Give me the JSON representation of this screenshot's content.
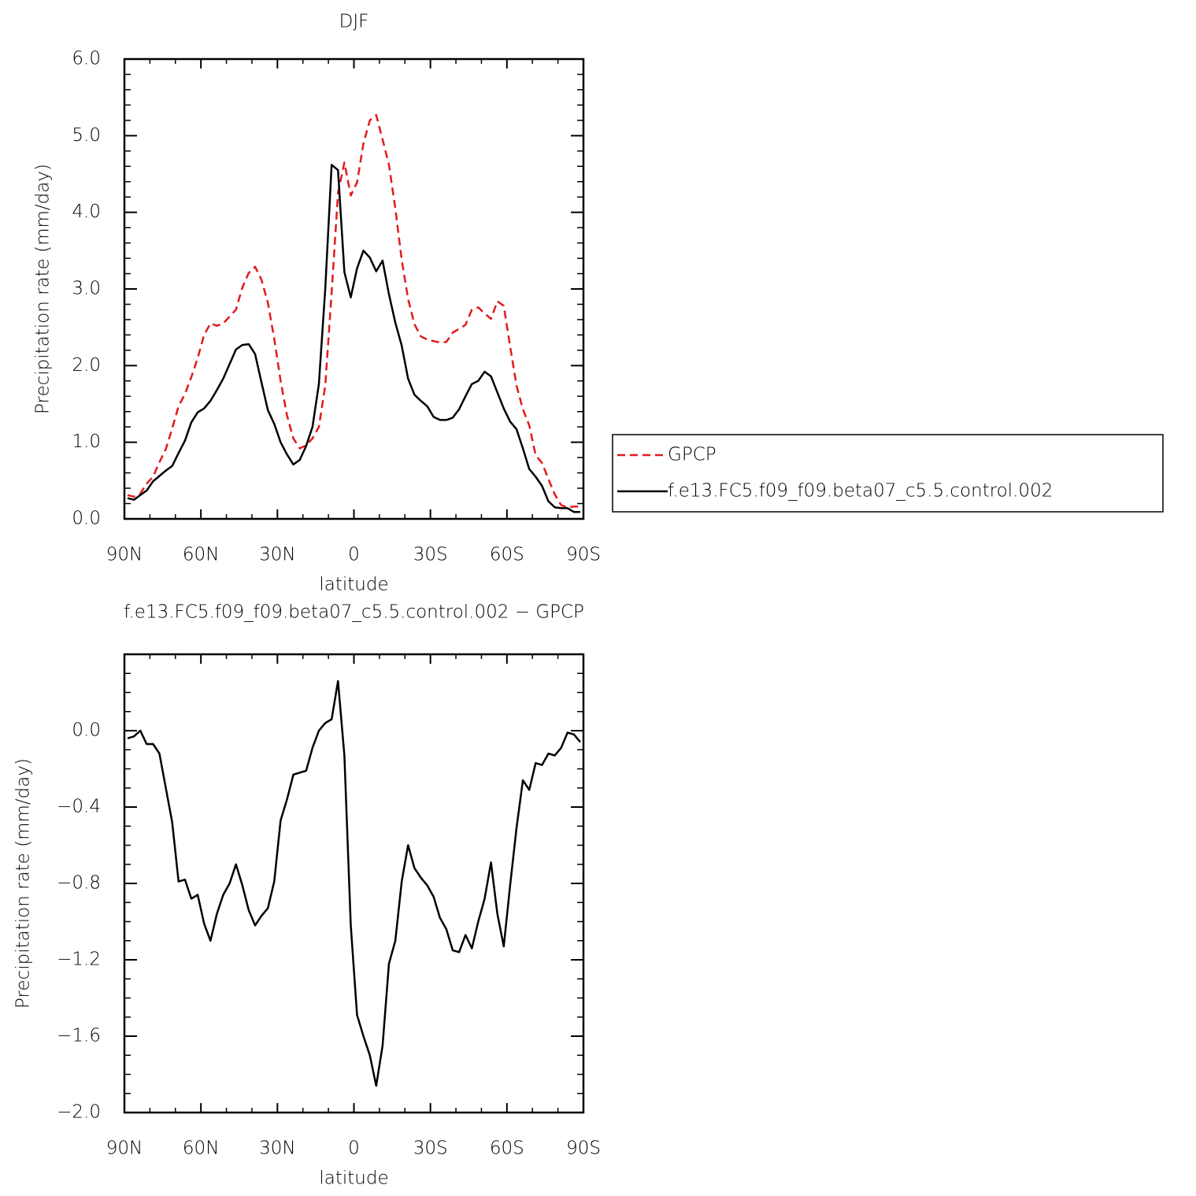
{
  "chart_data": [
    {
      "type": "line",
      "title": "DJF",
      "xlabel": "latitude",
      "ylabel": "Precipitation rate (mm/day)",
      "x": [
        88.75,
        86.25,
        83.75,
        81.25,
        78.75,
        76.25,
        73.75,
        71.25,
        68.75,
        66.25,
        63.75,
        61.25,
        58.75,
        56.25,
        53.75,
        51.25,
        48.75,
        46.25,
        43.75,
        41.25,
        38.75,
        36.25,
        33.75,
        31.25,
        28.75,
        26.25,
        23.75,
        21.25,
        18.75,
        16.25,
        13.75,
        11.25,
        8.75,
        6.25,
        3.75,
        1.25,
        -1.25,
        -3.75,
        -6.25,
        -8.75,
        -11.25,
        -13.75,
        -16.25,
        -18.75,
        -21.25,
        -23.75,
        -26.25,
        -28.75,
        -31.25,
        -33.75,
        -36.25,
        -38.75,
        -41.25,
        -43.75,
        -46.25,
        -48.75,
        -51.25,
        -53.75,
        -56.25,
        -58.75,
        -61.25,
        -63.75,
        -66.25,
        -68.75,
        -71.25,
        -73.75,
        -76.25,
        -78.75,
        -81.25,
        -83.75,
        -86.25,
        -88.75
      ],
      "series": [
        {
          "name": "GPCP",
          "color": "#e31a1c",
          "line_style": "dashed",
          "values": [
            0.31,
            0.29,
            0.33,
            0.46,
            0.55,
            0.74,
            0.91,
            1.18,
            1.47,
            1.63,
            1.85,
            2.1,
            2.4,
            2.55,
            2.52,
            2.55,
            2.64,
            2.73,
            3.02,
            3.21,
            3.29,
            3.12,
            2.82,
            2.35,
            1.8,
            1.35,
            1.05,
            0.92,
            0.96,
            1.05,
            1.2,
            1.74,
            2.95,
            4.25,
            4.65,
            4.22,
            4.39,
            4.9,
            5.2,
            5.27,
            4.95,
            4.62,
            4.05,
            3.38,
            2.87,
            2.54,
            2.38,
            2.34,
            2.32,
            2.3,
            2.31,
            2.43,
            2.48,
            2.53,
            2.73,
            2.76,
            2.68,
            2.61,
            2.84,
            2.78,
            2.25,
            1.74,
            1.43,
            1.22,
            0.83,
            0.73,
            0.52,
            0.32,
            0.18,
            0.15,
            0.16,
            0.16
          ]
        },
        {
          "name": "f.e13.FC5.f09_f09.beta07_c5.5.control.002",
          "color": "#000000",
          "line_style": "solid",
          "values": [
            0.27,
            0.25,
            0.31,
            0.37,
            0.49,
            0.56,
            0.63,
            0.69,
            0.86,
            1.02,
            1.26,
            1.39,
            1.44,
            1.54,
            1.68,
            1.83,
            2.02,
            2.21,
            2.27,
            2.28,
            2.15,
            1.78,
            1.42,
            1.24,
            1.0,
            0.84,
            0.71,
            0.77,
            0.95,
            1.2,
            1.76,
            3.0,
            4.62,
            4.55,
            3.22,
            2.89,
            3.27,
            3.5,
            3.41,
            3.23,
            3.37,
            2.93,
            2.56,
            2.26,
            1.83,
            1.62,
            1.54,
            1.47,
            1.33,
            1.29,
            1.29,
            1.32,
            1.43,
            1.6,
            1.76,
            1.8,
            1.92,
            1.86,
            1.65,
            1.44,
            1.27,
            1.17,
            0.92,
            0.65,
            0.55,
            0.43,
            0.23,
            0.15,
            0.14,
            0.14,
            0.09,
            0.09
          ]
        }
      ],
      "xlim": [
        90,
        -90
      ],
      "xticks": [
        {
          "value": 90,
          "label": "90N"
        },
        {
          "value": 60,
          "label": "60N"
        },
        {
          "value": 30,
          "label": "30N"
        },
        0,
        {
          "value": -30,
          "label": "30S"
        },
        {
          "value": -60,
          "label": "60S"
        },
        {
          "value": -90,
          "label": "90S"
        }
      ],
      "ylim": [
        0,
        6
      ],
      "yticks": [
        {
          "value": 0,
          "label": "0.0"
        },
        {
          "value": 1,
          "label": "1.0"
        },
        {
          "value": 2,
          "label": "2.0"
        },
        {
          "value": 3,
          "label": "3.0"
        },
        {
          "value": 4,
          "label": "4.0"
        },
        {
          "value": 5,
          "label": "5.0"
        },
        {
          "value": 6,
          "label": "6.0"
        }
      ],
      "legend": "right"
    },
    {
      "type": "line",
      "title": "f.e13.FC5.f09_f09.beta07_c5.5.control.002 − GPCP",
      "xlabel": "latitude",
      "ylabel": "Precipitation rate (mm/day)",
      "x": [
        88.75,
        86.25,
        83.75,
        81.25,
        78.75,
        76.25,
        73.75,
        71.25,
        68.75,
        66.25,
        63.75,
        61.25,
        58.75,
        56.25,
        53.75,
        51.25,
        48.75,
        46.25,
        43.75,
        41.25,
        38.75,
        36.25,
        33.75,
        31.25,
        28.75,
        26.25,
        23.75,
        21.25,
        18.75,
        16.25,
        13.75,
        11.25,
        8.75,
        6.25,
        3.75,
        1.25,
        -1.25,
        -3.75,
        -6.25,
        -8.75,
        -11.25,
        -13.75,
        -16.25,
        -18.75,
        -21.25,
        -23.75,
        -26.25,
        -28.75,
        -31.25,
        -33.75,
        -36.25,
        -38.75,
        -41.25,
        -43.75,
        -46.25,
        -48.75,
        -51.25,
        -53.75,
        -56.25,
        -58.75,
        -61.25,
        -63.75,
        -66.25,
        -68.75,
        -71.25,
        -73.75,
        -76.25,
        -78.75,
        -81.25,
        -83.75,
        -86.25,
        -88.75
      ],
      "values": [
        -0.04,
        -0.03,
        0.0,
        -0.07,
        -0.07,
        -0.12,
        -0.3,
        -0.48,
        -0.79,
        -0.78,
        -0.88,
        -0.86,
        -1.01,
        -1.1,
        -0.96,
        -0.86,
        -0.8,
        -0.7,
        -0.81,
        -0.94,
        -1.02,
        -0.97,
        -0.93,
        -0.79,
        -0.47,
        -0.36,
        -0.23,
        -0.22,
        -0.21,
        -0.09,
        0.0,
        0.04,
        0.06,
        0.26,
        -0.13,
        -1.02,
        -1.49,
        -1.6,
        -1.7,
        -1.86,
        -1.65,
        -1.22,
        -1.1,
        -0.79,
        -0.6,
        -0.72,
        -0.77,
        -0.81,
        -0.87,
        -0.98,
        -1.04,
        -1.15,
        -1.16,
        -1.07,
        -1.14,
        -1.0,
        -0.88,
        -0.69,
        -0.96,
        -1.13,
        -0.81,
        -0.51,
        -0.26,
        -0.31,
        -0.17,
        -0.18,
        -0.12,
        -0.13,
        -0.09,
        -0.01,
        -0.02,
        -0.06
      ],
      "color": "#000000",
      "xlim": [
        90,
        -90
      ],
      "xticks": [
        {
          "value": 90,
          "label": "90N"
        },
        {
          "value": 60,
          "label": "60N"
        },
        {
          "value": 30,
          "label": "30N"
        },
        0,
        {
          "value": -30,
          "label": "30S"
        },
        {
          "value": -60,
          "label": "60S"
        },
        {
          "value": -90,
          "label": "90S"
        }
      ],
      "ylim": [
        -2,
        0.4
      ],
      "yticks": [
        {
          "value": -2,
          "label": "−2.0"
        },
        {
          "value": -1.6,
          "label": "−1.6"
        },
        {
          "value": -1.2,
          "label": "−1.2"
        },
        {
          "value": -0.8,
          "label": "−0.8"
        },
        {
          "value": -0.4,
          "label": "−0.4"
        },
        {
          "value": 0,
          "label": "0.0"
        }
      ]
    }
  ]
}
